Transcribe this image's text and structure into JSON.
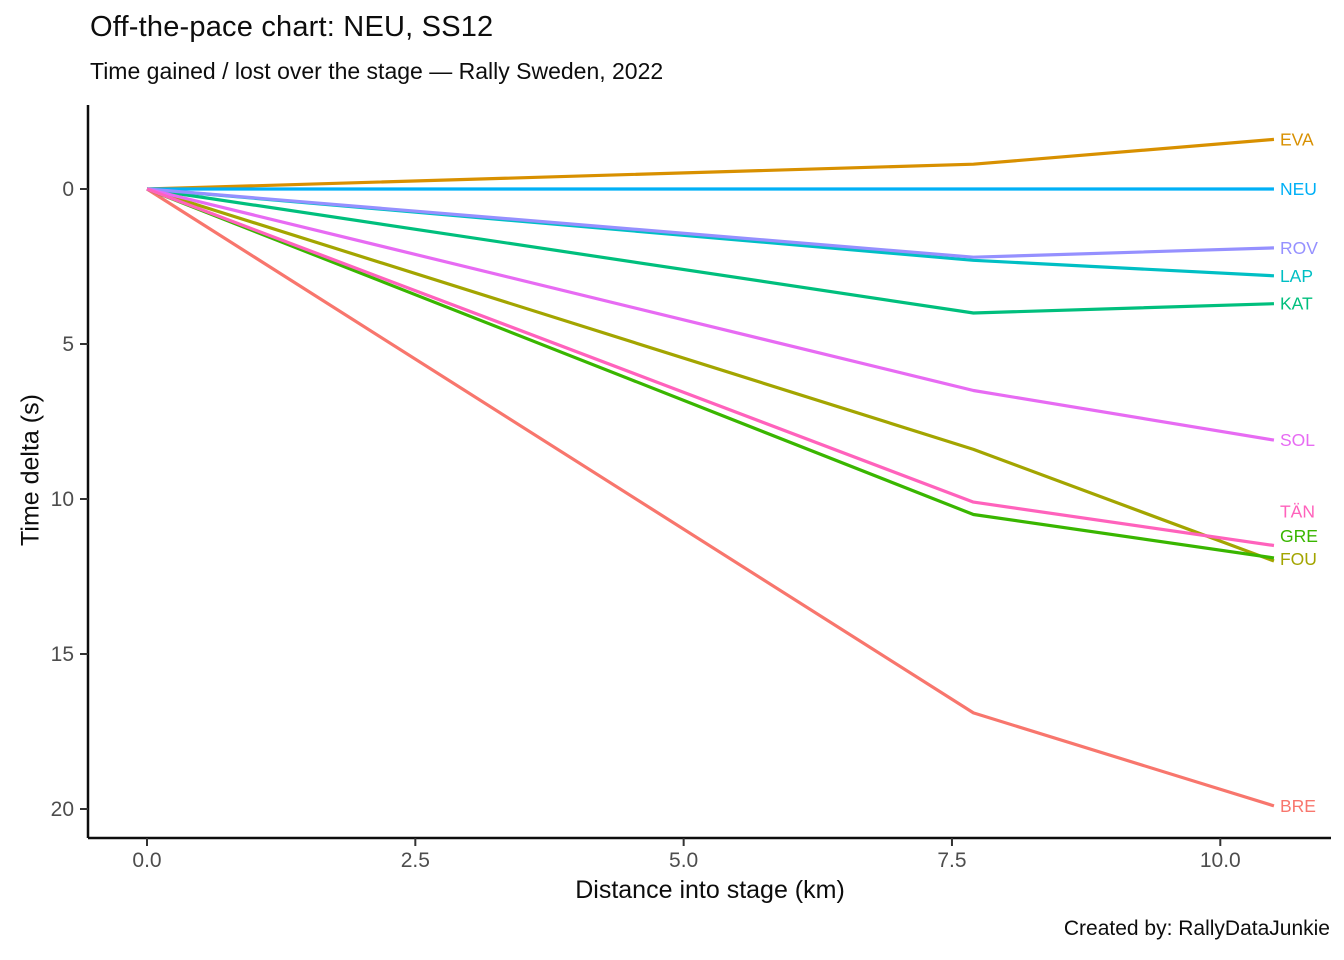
{
  "chart_data": {
    "type": "line",
    "title": "Off-the-pace chart: NEU, SS12",
    "subtitle": "Time gained / lost over the stage — Rally Sweden, 2022",
    "caption": "Created by: RallyDataJunkie",
    "xlabel": "Distance into stage (km)",
    "ylabel": "Time delta (s)",
    "x_km": [
      0,
      7.7,
      10.5
    ],
    "x_ticks": [
      {
        "value": 0,
        "label": "0.0"
      },
      {
        "value": 2.5,
        "label": "2.5"
      },
      {
        "value": 5,
        "label": "5.0"
      },
      {
        "value": 7.5,
        "label": "7.5"
      },
      {
        "value": 10,
        "label": "10.0"
      }
    ],
    "y_ticks": [
      {
        "value": 0,
        "label": "0"
      },
      {
        "value": 5,
        "label": "5"
      },
      {
        "value": 10,
        "label": "10"
      },
      {
        "value": 15,
        "label": "15"
      },
      {
        "value": 20,
        "label": "20"
      }
    ],
    "y_axis_reversed": true,
    "grid": false,
    "legend": "direct-labels-right",
    "series": [
      {
        "code": "BRE",
        "color": "#F8766D",
        "deltas": [
          0,
          16.9,
          19.9
        ],
        "label_dy": 0
      },
      {
        "code": "EVA",
        "color": "#D89000",
        "deltas": [
          0,
          -0.8,
          -1.6
        ],
        "label_dy": 0
      },
      {
        "code": "FOU",
        "color": "#A3A500",
        "deltas": [
          0,
          8.4,
          12.0
        ],
        "label_dy": -2
      },
      {
        "code": "GRE",
        "color": "#39B600",
        "deltas": [
          0,
          10.5,
          11.9
        ],
        "label_dy": -22
      },
      {
        "code": "KAT",
        "color": "#00BF7D",
        "deltas": [
          0,
          4.0,
          3.7
        ],
        "label_dy": 0
      },
      {
        "code": "LAP",
        "color": "#00BFC4",
        "deltas": [
          0,
          2.3,
          2.8
        ],
        "label_dy": 0
      },
      {
        "code": "NEU",
        "color": "#00B0F6",
        "deltas": [
          0,
          0,
          0
        ],
        "label_dy": 0
      },
      {
        "code": "ROV",
        "color": "#9590FF",
        "deltas": [
          0,
          2.2,
          1.9
        ],
        "label_dy": 0
      },
      {
        "code": "SOL",
        "color": "#E76BF3",
        "deltas": [
          0,
          6.5,
          8.1
        ],
        "label_dy": 0
      },
      {
        "code": "TÄN",
        "color": "#FF62BC",
        "deltas": [
          0,
          10.1,
          11.5
        ],
        "label_dy": -34
      }
    ],
    "colors": {
      "axis_line": "#0d0d0d",
      "tick_mark": "#333333",
      "tick_text": "#4d4d4d",
      "text": "#0d0d0d",
      "background": "#ffffff"
    }
  }
}
